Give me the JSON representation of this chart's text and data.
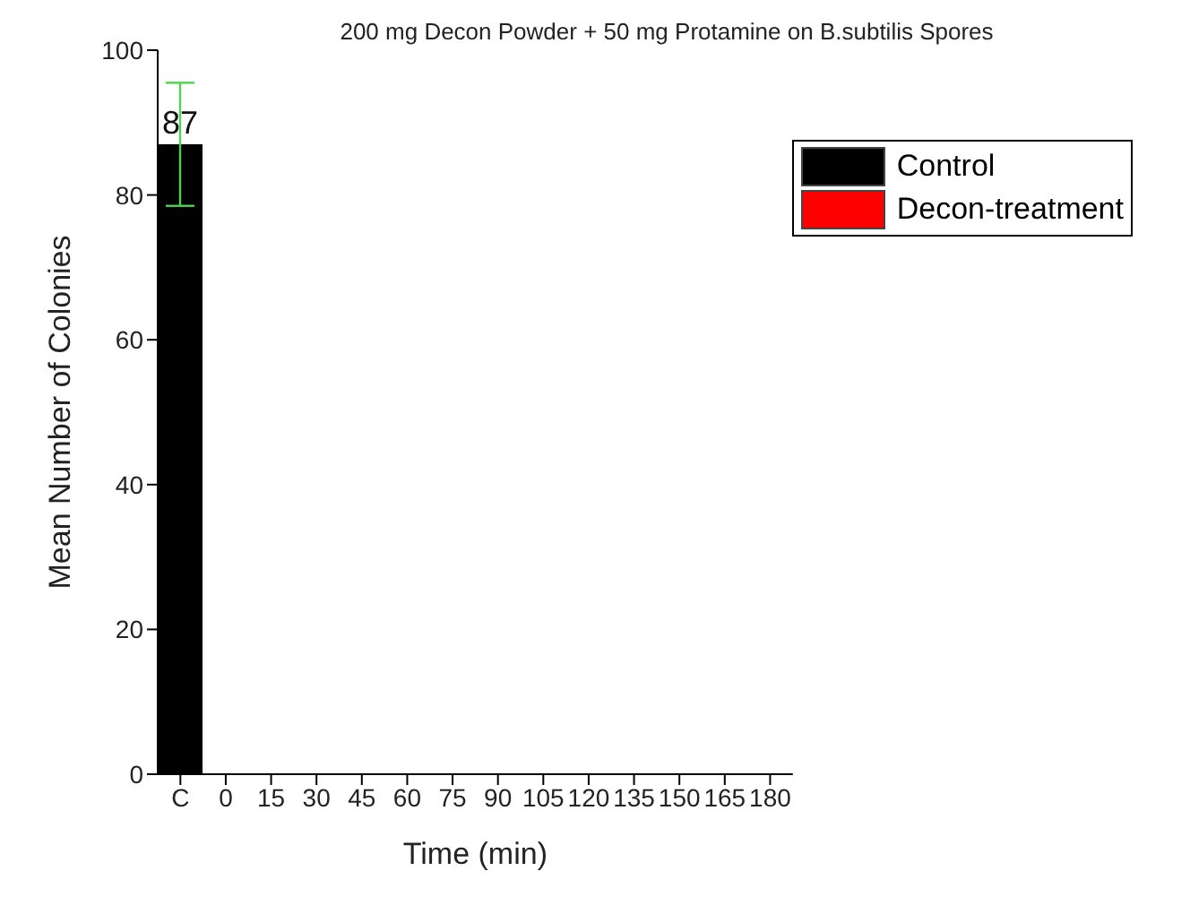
{
  "chart_data": {
    "type": "bar",
    "title": "200 mg Decon Powder + 50 mg Protamine on B.subtilis Spores",
    "xlabel": "Time (min)",
    "ylabel": "Mean Number of Colonies",
    "categories": [
      "C",
      "0",
      "15",
      "30",
      "45",
      "60",
      "75",
      "90",
      "105",
      "120",
      "135",
      "150",
      "165",
      "180"
    ],
    "series": [
      {
        "name": "Control",
        "color": "#000000",
        "values": [
          87,
          null,
          null,
          null,
          null,
          null,
          null,
          null,
          null,
          null,
          null,
          null,
          null,
          null
        ],
        "errors": [
          8.5,
          null,
          null,
          null,
          null,
          null,
          null,
          null,
          null,
          null,
          null,
          null,
          null,
          null
        ],
        "value_labels": [
          "87",
          null,
          null,
          null,
          null,
          null,
          null,
          null,
          null,
          null,
          null,
          null,
          null,
          null
        ]
      },
      {
        "name": "Decon-treatment",
        "color": "#ff0000",
        "values": [
          null,
          0,
          0,
          0,
          0,
          0,
          0,
          0,
          0,
          0,
          0,
          0,
          0,
          0
        ]
      }
    ],
    "stacked": true,
    "ylim": [
      0,
      100
    ],
    "yticks": [
      0,
      20,
      40,
      60,
      80,
      100
    ],
    "grid": false,
    "legend": "top right"
  }
}
